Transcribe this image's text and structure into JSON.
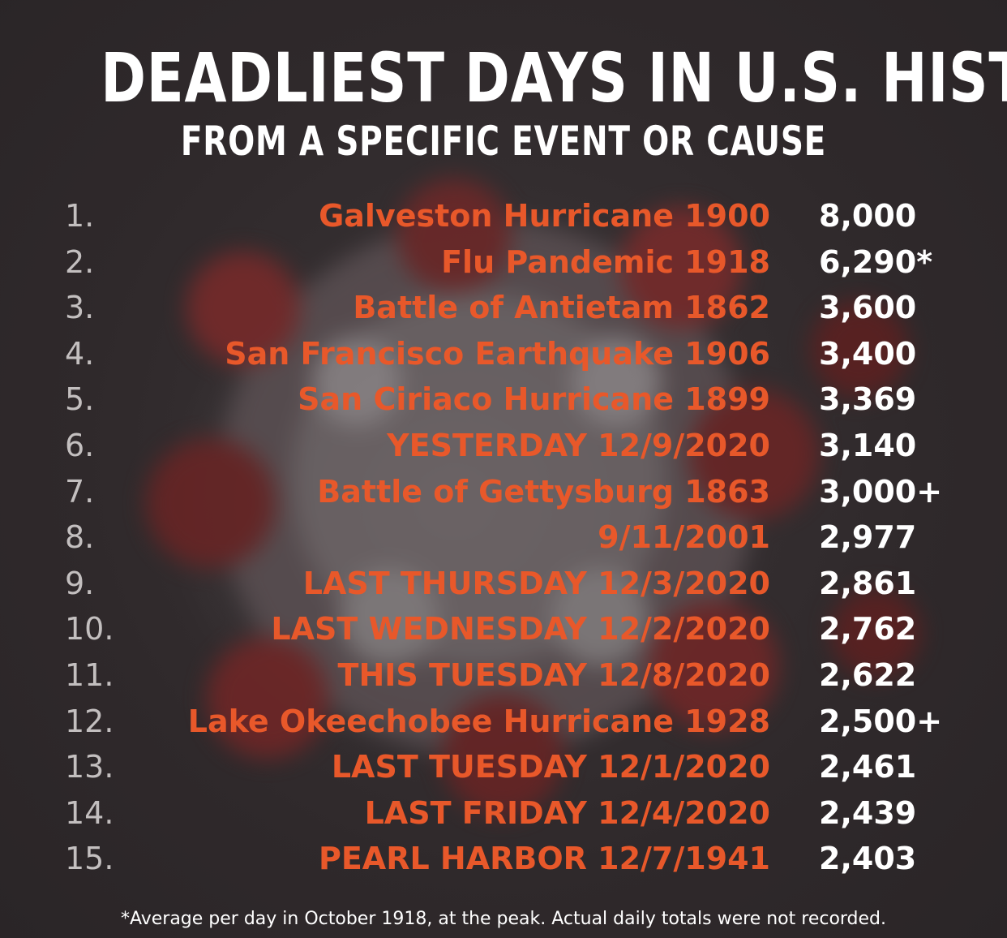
{
  "title": "DEADLIEST DAYS IN U.S. HISTORY",
  "subtitle": "FROM A SPECIFIC EVENT OR CAUSE",
  "colors": {
    "background": "#3a3436",
    "event_text": "#e8582a",
    "rank_text": "#c3bfbf",
    "value_text": "#ffffff",
    "title_text": "#ffffff"
  },
  "rows": [
    {
      "rank": "1.",
      "event": "Galveston Hurricane 1900",
      "deaths": "8,000"
    },
    {
      "rank": "2.",
      "event": "Flu Pandemic 1918",
      "deaths": "6,290*"
    },
    {
      "rank": "3.",
      "event": "Battle of Antietam 1862",
      "deaths": "3,600"
    },
    {
      "rank": "4.",
      "event": "San Francisco Earthquake 1906",
      "deaths": "3,400"
    },
    {
      "rank": "5.",
      "event": "San Ciriaco Hurricane 1899",
      "deaths": "3,369"
    },
    {
      "rank": "6.",
      "event": "YESTERDAY 12/9/2020",
      "deaths": "3,140"
    },
    {
      "rank": "7.",
      "event": "Battle of Gettysburg 1863",
      "deaths": "3,000+"
    },
    {
      "rank": "8.",
      "event": "9/11/2001",
      "deaths": "2,977"
    },
    {
      "rank": "9.",
      "event": "LAST THURSDAY 12/3/2020",
      "deaths": "2,861"
    },
    {
      "rank": "10.",
      "event": "LAST WEDNESDAY 12/2/2020",
      "deaths": "2,762"
    },
    {
      "rank": "11.",
      "event": "THIS TUESDAY 12/8/2020",
      "deaths": "2,622"
    },
    {
      "rank": "12.",
      "event": "Lake Okeechobee Hurricane 1928",
      "deaths": "2,500+"
    },
    {
      "rank": "13.",
      "event": "LAST TUESDAY 12/1/2020",
      "deaths": "2,461"
    },
    {
      "rank": "14.",
      "event": "LAST FRIDAY 12/4/2020",
      "deaths": "2,439"
    },
    {
      "rank": "15.",
      "event": "PEARL HARBOR 12/7/1941",
      "deaths": "2,403"
    }
  ],
  "footnote": "*Average per day in October 1918, at the peak. Actual daily totals were not recorded."
}
